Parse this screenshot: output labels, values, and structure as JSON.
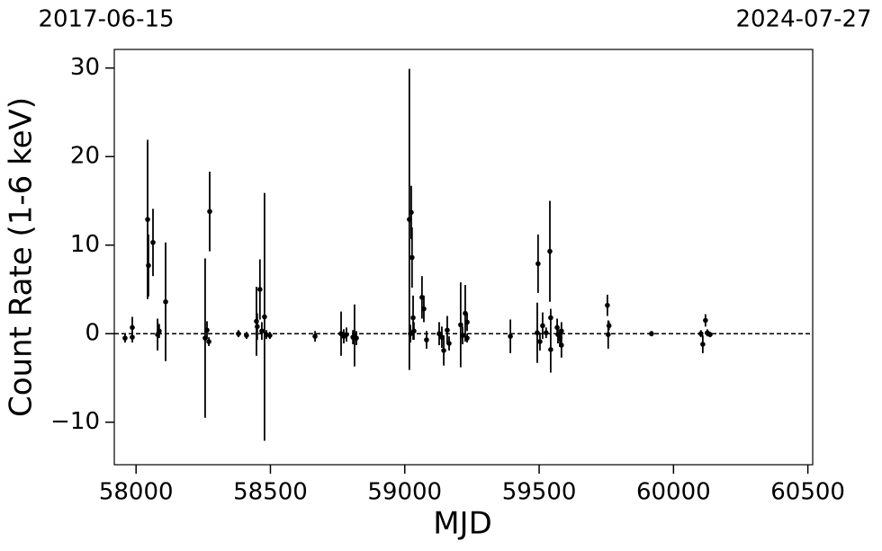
{
  "chart_data": {
    "type": "scatter",
    "x_label": "MJD",
    "y_label": "Count Rate (1-6 keV)",
    "annotations": [
      "2017-06-15",
      "2024-07-27"
    ],
    "color": "#000000",
    "hline": 0,
    "xlim": [
      57919,
      60518
    ],
    "ylim": [
      -14.8,
      32.1
    ],
    "xticks": [
      58000,
      58500,
      59000,
      59500,
      60000,
      60500
    ],
    "yticks": [
      {
        "value": -10,
        "label": "−10"
      },
      0,
      10,
      20,
      30
    ],
    "x": [
      57959,
      57986,
      57986,
      58043,
      58046,
      58063,
      58080,
      58086,
      58110,
      58257,
      58264,
      58271,
      58274,
      58381,
      58411,
      58448,
      58451,
      58461,
      58468,
      58478,
      58485,
      58498,
      58666,
      58763,
      58773,
      58783,
      58807,
      58813,
      58820,
      59017,
      59021,
      59024,
      59027,
      59031,
      59034,
      59064,
      59071,
      59081,
      59128,
      59138,
      59145,
      59158,
      59165,
      59208,
      59215,
      59225,
      59232,
      59232,
      59393,
      59496,
      59493,
      59503,
      59513,
      59526,
      59540,
      59543,
      59543,
      59567,
      59570,
      59577,
      59583,
      59583,
      59754,
      59760,
      59757,
      59918,
      60102,
      60109,
      60119,
      60126,
      60136
    ],
    "values": [
      -0.5,
      -0.4,
      0.7,
      12.9,
      7.7,
      10.3,
      -0.1,
      0.3,
      3.6,
      -0.5,
      0.4,
      -0.9,
      13.8,
      0,
      -0.2,
      1.4,
      0.8,
      5.0,
      0.3,
      1.9,
      -0.1,
      -0.2,
      -0.3,
      0,
      -0.3,
      -0.1,
      -0.4,
      -0.2,
      -0.5,
      12.9,
      0,
      13.7,
      8.6,
      1.8,
      0.3,
      4.1,
      2.8,
      -0.7,
      0,
      -0.4,
      -1.9,
      0.4,
      -1.1,
      1.0,
      -0.2,
      2.3,
      1.3,
      -0.5,
      -0.3,
      7.9,
      0.1,
      -0.9,
      0.9,
      0.1,
      9.3,
      -1.8,
      1.8,
      0.7,
      -0.1,
      -0.5,
      0.3,
      -1.3,
      3.2,
      0.9,
      -0.1,
      0,
      0,
      -1.2,
      1.5,
      0.1,
      -0.1
    ],
    "errors": [
      0.5,
      0.6,
      1.2,
      9.0,
      3.5,
      3.8,
      1.8,
      0.8,
      6.7,
      9.0,
      1.0,
      0.5,
      4.5,
      0.4,
      0.4,
      3.9,
      1.5,
      3.4,
      1.0,
      14,
      0.5,
      0.4,
      0.6,
      2.5,
      0.8,
      0.8,
      0.8,
      3.5,
      0.8,
      17,
      1.0,
      3.0,
      3.4,
      2.5,
      1.0,
      2.4,
      1.5,
      1.0,
      1.3,
      1.2,
      1.7,
      1.6,
      0.8,
      4.8,
      1.0,
      3.2,
      1.0,
      0.5,
      1.9,
      3.3,
      3.4,
      1.0,
      1.5,
      0.6,
      5.7,
      2.6,
      1.0,
      1.0,
      1.0,
      1.0,
      1.0,
      1.4,
      1.2,
      0.5,
      1.6,
      0.3,
      0.4,
      1.0,
      0.7,
      0.4,
      0.3
    ]
  }
}
